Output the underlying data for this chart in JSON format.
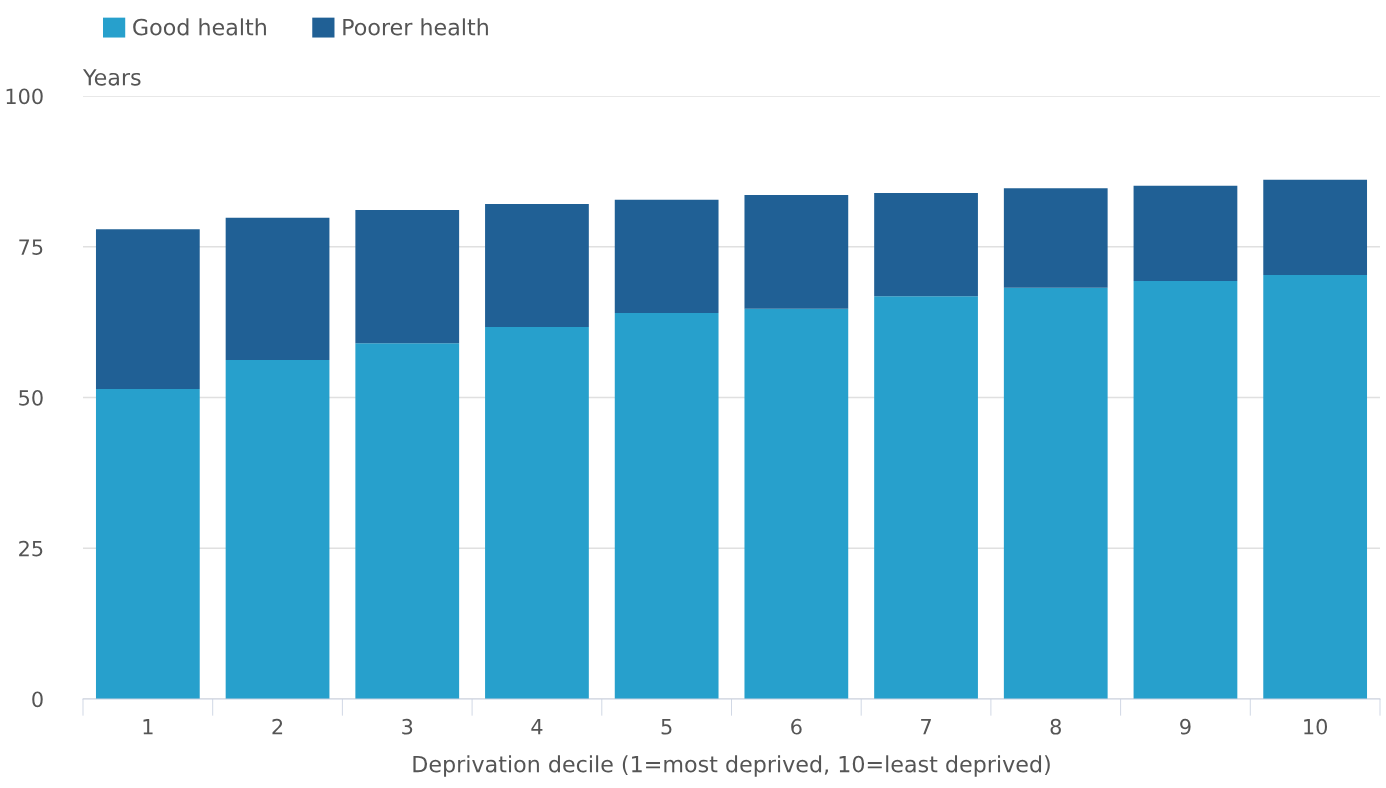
{
  "chart_data": {
    "type": "bar",
    "stacked": true,
    "ylabel": "Years",
    "xlabel": "Deprivation decile (1=most deprived, 10=least deprived)",
    "categories": [
      "1",
      "2",
      "3",
      "4",
      "5",
      "6",
      "7",
      "8",
      "9",
      "10"
    ],
    "series": [
      {
        "name": "Good health",
        "color": "#27a0cc",
        "values": [
          51.4,
          56.2,
          59.0,
          61.7,
          64.0,
          64.7,
          66.8,
          68.2,
          69.3,
          70.3
        ]
      },
      {
        "name": "Poorer health",
        "color": "#206095",
        "values": [
          26.5,
          23.6,
          22.1,
          20.4,
          18.8,
          18.9,
          17.1,
          16.5,
          15.8,
          15.8
        ]
      }
    ],
    "ylim": [
      0,
      100
    ],
    "yticks": [
      0,
      25,
      50,
      75,
      100
    ],
    "grid": "y",
    "legend": "top left"
  }
}
